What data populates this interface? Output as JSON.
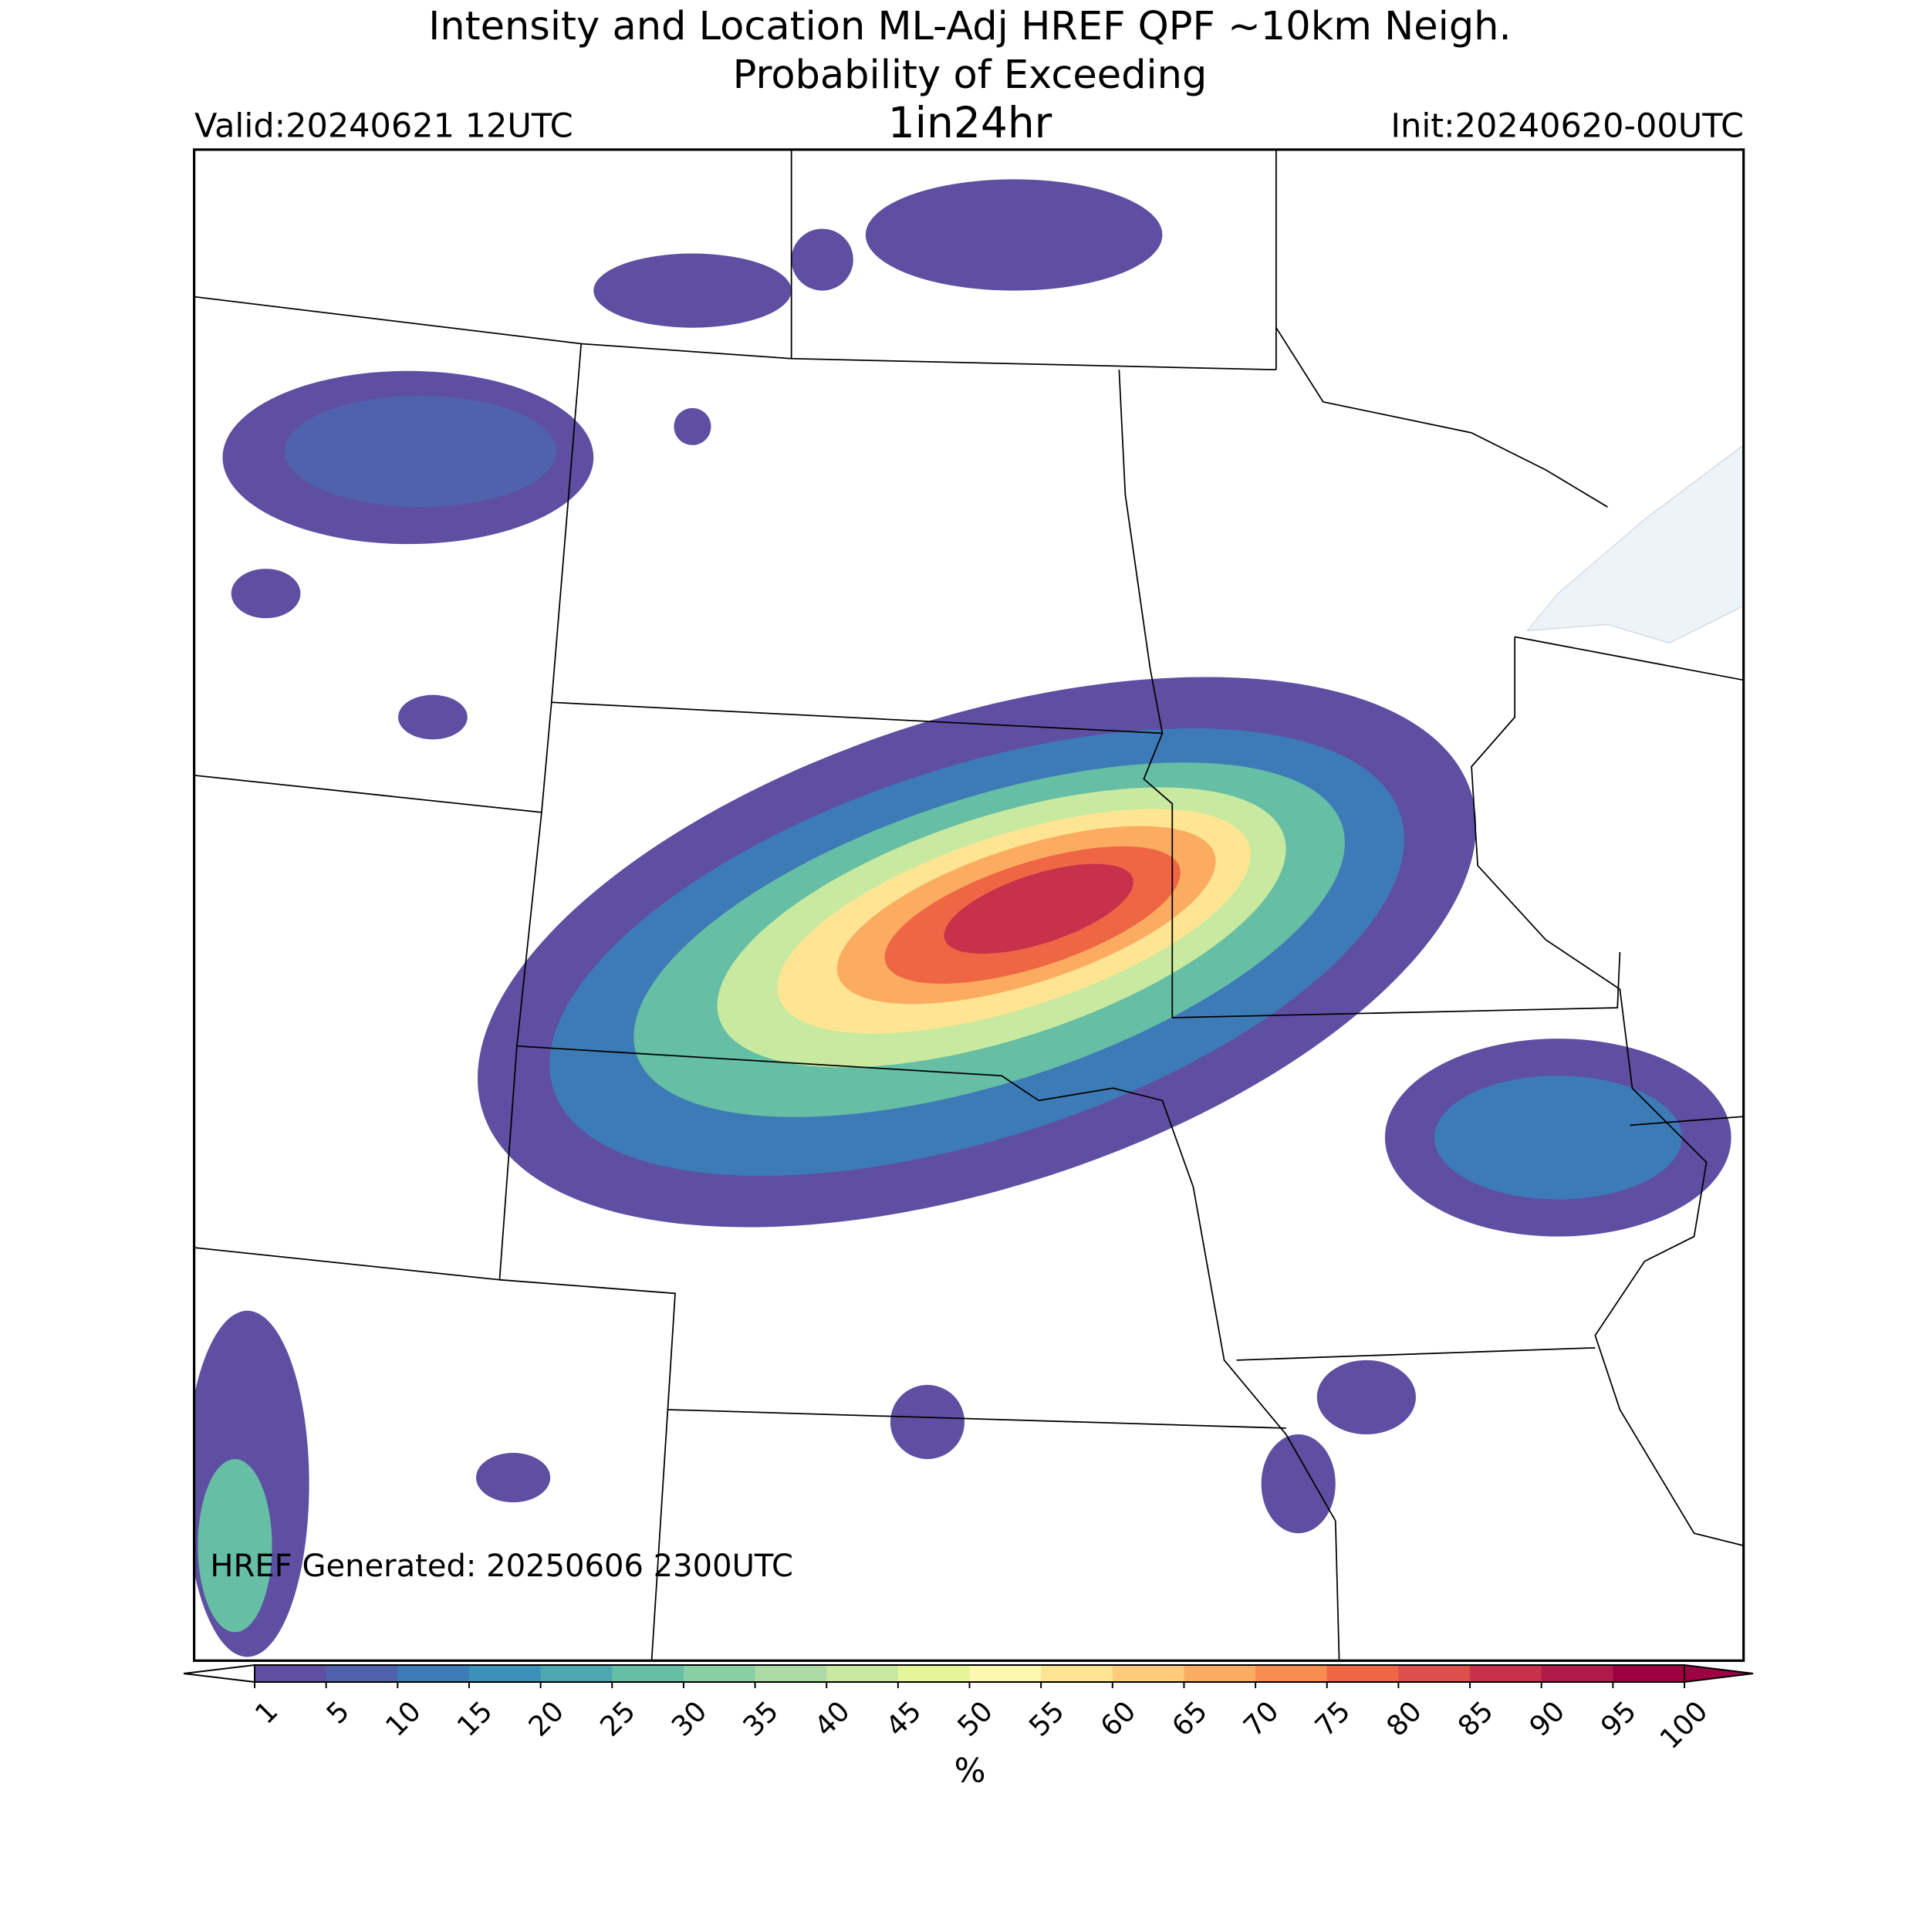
{
  "header": {
    "title_line1": "Intensity and Location ML-Adj HREF QPF ~10km Neigh.",
    "title_line2": "Probability of Exceeding",
    "threshold": "1in24hr",
    "valid": "Valid:20240621 12UTC",
    "init": "Init:20240620-00UTC"
  },
  "footer_note": "HREF Generated: 20250606 2300UTC",
  "colorbar": {
    "label": "%",
    "ticks": [
      1,
      5,
      10,
      15,
      20,
      25,
      30,
      35,
      40,
      45,
      50,
      55,
      60,
      65,
      70,
      75,
      80,
      85,
      90,
      95,
      100
    ],
    "colors": [
      "#5e4fa2",
      "#4f62ab",
      "#3d7bb7",
      "#3b92b8",
      "#4ca8b0",
      "#66bea4",
      "#88cfa4",
      "#aadca4",
      "#c8e9a0",
      "#e6f598",
      "#fbf8b0",
      "#fee593",
      "#fdcb79",
      "#fcac60",
      "#f88c51",
      "#ef6645",
      "#de4e4b",
      "#c8314b",
      "#b21a4a",
      "#9e0142"
    ],
    "under_color": "#ffffff",
    "over_color": "#9e0142"
  }
}
